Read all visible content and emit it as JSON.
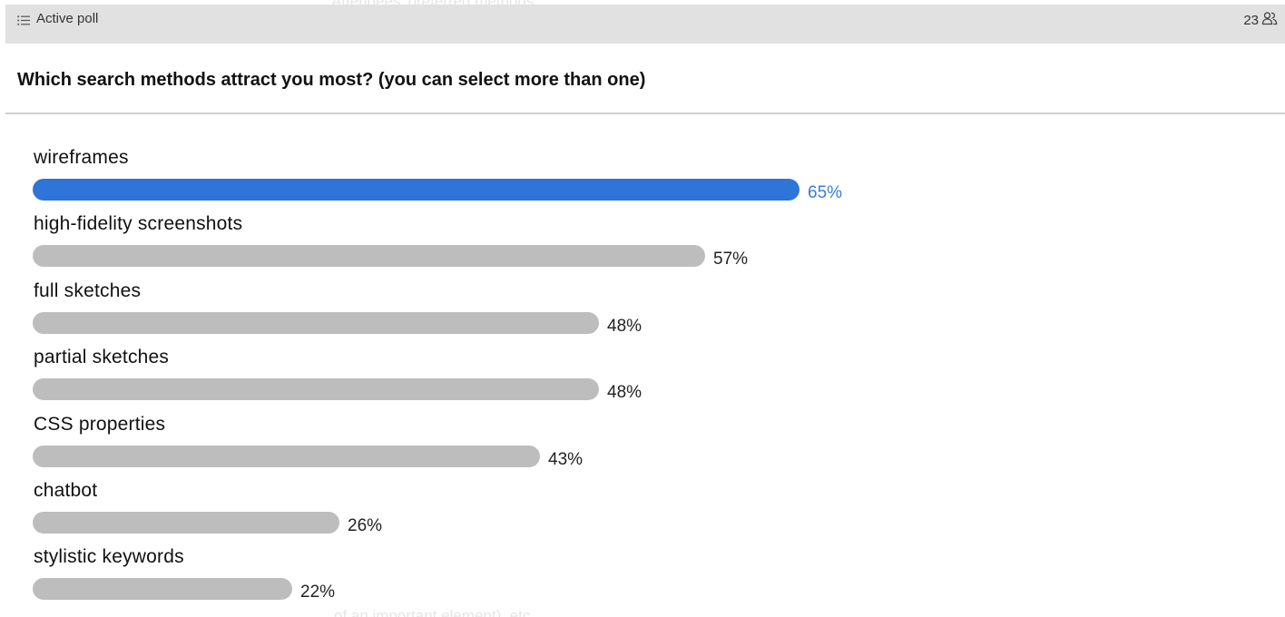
{
  "header": {
    "status_label": "Active poll",
    "participant_count": "23"
  },
  "question": "Which search methods attract you most? (you can select more than one)",
  "background_text": {
    "top": "Attendees' preferred methods:",
    "bottom": "of an important element), etc."
  },
  "colors": {
    "accent": "#2f74d9",
    "bar": "#bdbdbd"
  },
  "options": [
    {
      "label": "wireframes",
      "percent": 65,
      "percent_label": "65%",
      "leading": true
    },
    {
      "label": "high-fidelity screenshots",
      "percent": 57,
      "percent_label": "57%",
      "leading": false
    },
    {
      "label": "full sketches",
      "percent": 48,
      "percent_label": "48%",
      "leading": false
    },
    {
      "label": "partial sketches",
      "percent": 48,
      "percent_label": "48%",
      "leading": false
    },
    {
      "label": "CSS properties",
      "percent": 43,
      "percent_label": "43%",
      "leading": false
    },
    {
      "label": "chatbot",
      "percent": 26,
      "percent_label": "26%",
      "leading": false
    },
    {
      "label": "stylistic keywords",
      "percent": 22,
      "percent_label": "22%",
      "leading": false
    }
  ]
}
